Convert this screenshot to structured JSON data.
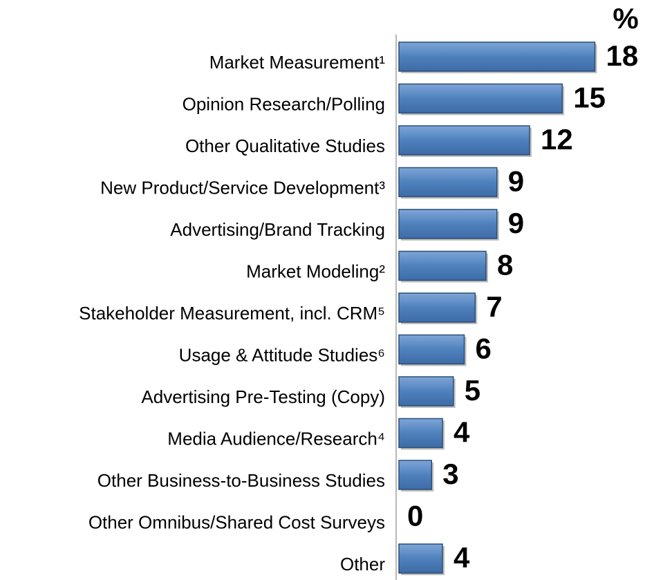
{
  "chart_data": {
    "type": "hbar",
    "unit": "%",
    "categories": [
      "Market Measurement¹",
      "Opinion Research/Polling",
      "Other Qualitative Studies",
      "New Product/Service Development³",
      "Advertising/Brand Tracking",
      "Market Modeling²",
      "Stakeholder Measurement, incl. CRM⁵",
      "Usage & Attitude Studies⁶",
      "Advertising Pre-Testing (Copy)",
      "Media Audience/Research⁴",
      "Other Business-to-Business Studies",
      "Other Omnibus/Shared Cost Surveys",
      "Other"
    ],
    "values": [
      18,
      15,
      12,
      9,
      9,
      8,
      7,
      6,
      5,
      4,
      3,
      0,
      4
    ],
    "color": "#4f81bd"
  }
}
